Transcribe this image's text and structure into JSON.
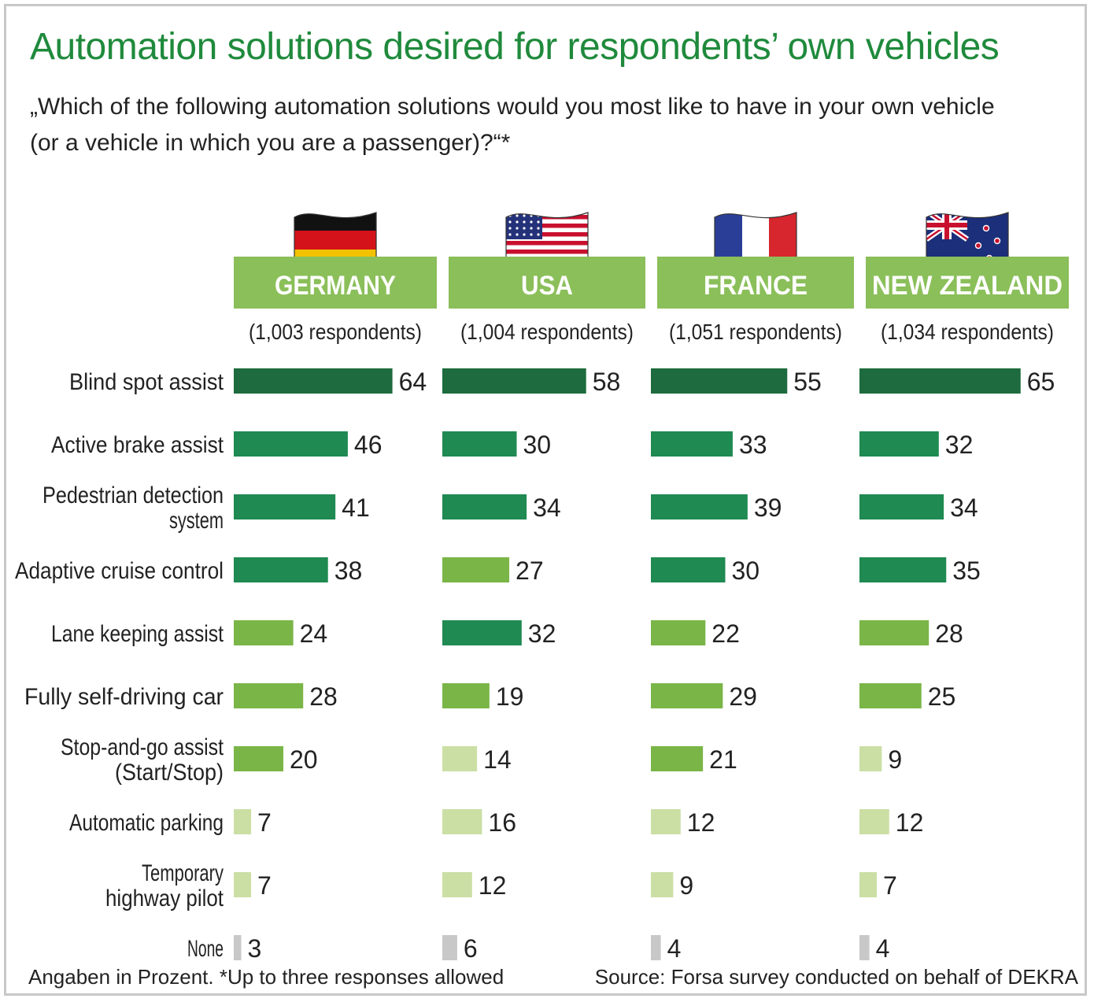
{
  "colors": {
    "dark": "#1d6b3e",
    "mid": "#1f8a52",
    "light": "#7ab547",
    "pale": "#cbdfa5",
    "grey": "#c8c8c8",
    "header": "#8bbf5a",
    "title": "#1f8a3c"
  },
  "chart_data": {
    "type": "bar",
    "orientation": "horizontal",
    "title": "Automation solutions desired for respondents’ own vehicles",
    "subtitle_lines": [
      "„Which of the following automation solutions would you most like to have in your own vehicle",
      "(or a vehicle in which you are a passenger)?“*"
    ],
    "unit": "percent",
    "categories": [
      [
        "Blind spot assist"
      ],
      [
        "Active brake assist"
      ],
      [
        "Pedestrian detection",
        "system"
      ],
      [
        "Adaptive cruise control"
      ],
      [
        "Lane keeping assist"
      ],
      [
        "Fully self-driving car"
      ],
      [
        "Stop-and-go assist",
        "(Start/Stop)"
      ],
      [
        "Automatic parking"
      ],
      [
        "Temporary",
        "highway pilot"
      ],
      [
        "None"
      ]
    ],
    "series": [
      {
        "name": "GERMANY",
        "respondents": "(1,003 respondents)",
        "flag": "germany-flag-icon",
        "values": [
          64,
          46,
          41,
          38,
          24,
          28,
          20,
          7,
          7,
          3
        ],
        "tones": [
          "dark",
          "mid",
          "mid",
          "mid",
          "light",
          "light",
          "light",
          "pale",
          "pale",
          "grey"
        ]
      },
      {
        "name": "USA",
        "respondents": "(1,004 respondents)",
        "flag": "usa-flag-icon",
        "values": [
          58,
          30,
          34,
          27,
          32,
          19,
          14,
          16,
          12,
          6
        ],
        "tones": [
          "dark",
          "mid",
          "mid",
          "light",
          "mid",
          "light",
          "pale",
          "pale",
          "pale",
          "grey"
        ]
      },
      {
        "name": "FRANCE",
        "respondents": "(1,051 respondents)",
        "flag": "france-flag-icon",
        "values": [
          55,
          33,
          39,
          30,
          22,
          29,
          21,
          12,
          9,
          4
        ],
        "tones": [
          "dark",
          "mid",
          "mid",
          "mid",
          "light",
          "light",
          "light",
          "pale",
          "pale",
          "grey"
        ]
      },
      {
        "name": "NEW ZEALAND",
        "respondents": "(1,034 respondents)",
        "flag": "new-zealand-flag-icon",
        "values": [
          65,
          32,
          34,
          35,
          28,
          25,
          9,
          12,
          7,
          4
        ],
        "tones": [
          "dark",
          "mid",
          "mid",
          "mid",
          "light",
          "light",
          "pale",
          "pale",
          "pale",
          "grey"
        ]
      }
    ],
    "footnote": "Angaben in Prozent. *Up to three responses allowed",
    "source": "Source: Forsa survey conducted on behalf of DEKRA"
  }
}
